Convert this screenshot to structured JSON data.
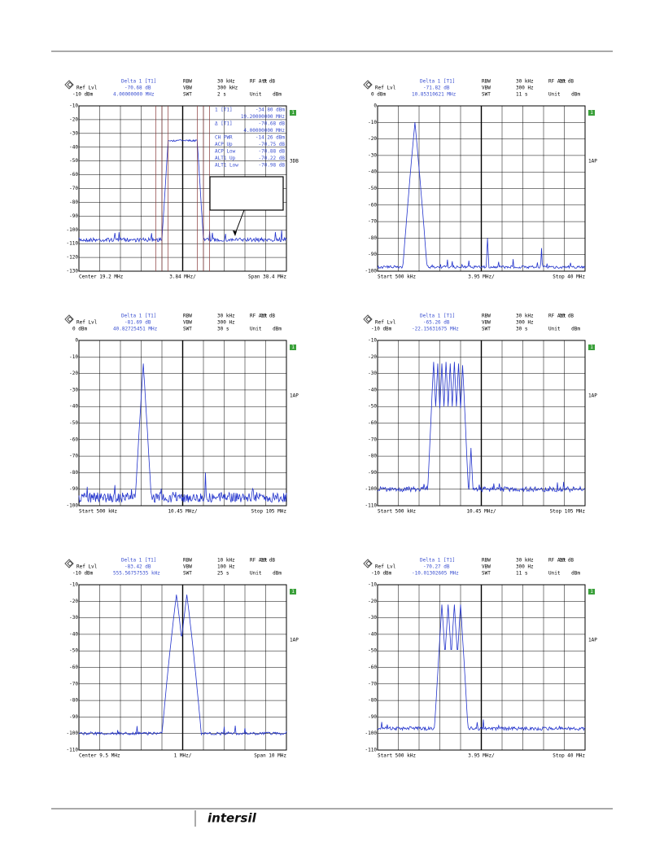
{
  "panels": [
    {
      "marker_title": "Delta 1 [T1]",
      "ref_label": "Ref Lvl",
      "marker_level": "-70.68 dB",
      "ref_level": "-10 dBm",
      "marker_freq": "4.00000000 MHz",
      "settings": [
        [
          "RBW",
          "30 kHz",
          "RF Att",
          "0 dB"
        ],
        [
          "VBW",
          "300 kHz"
        ],
        [
          "SWT",
          "2 s",
          "Unit",
          "dBm"
        ]
      ],
      "trace_label": "1",
      "side_label": "3DB",
      "yticks": [
        "-10",
        "-20",
        "-30",
        "-40",
        "-50",
        "-60",
        "-70",
        "-80",
        "-90",
        "-100",
        "-110",
        "-120",
        "-130"
      ],
      "footer": [
        "Center 19.2 MHz",
        "3.84 MHz/",
        "Span 38.4 MHz"
      ],
      "marker_table": [
        [
          "1 [T1]",
          "-34.80 dBm"
        ],
        [
          "19.20000000 MHz"
        ],
        [
          "Δ [T1]",
          "-70.68 dB"
        ],
        [
          "4.00000000 MHz"
        ],
        [
          "CH PWR",
          "-14.26 dBm"
        ],
        [
          "ACP Up",
          "-70.75 dB"
        ],
        [
          "ACP Low",
          "-70.88 dB"
        ],
        [
          "ALT1 Up",
          "-70.22 dB"
        ],
        [
          "ALT1 Low",
          "-70.98 dB"
        ]
      ]
    },
    {
      "marker_title": "Delta 1 [T1]",
      "ref_label": "Ref Lvl",
      "marker_level": "-71.82 dB",
      "ref_level": "0 dBm",
      "marker_freq": "10.85310621 MHz",
      "settings": [
        [
          "RBW",
          "30 kHz",
          "RF Att",
          "10 dB"
        ],
        [
          "VBW",
          "300 Hz"
        ],
        [
          "SWT",
          "11 s",
          "Unit",
          "dBm"
        ]
      ],
      "trace_label": "1",
      "side_label": "1AP",
      "yticks": [
        "0",
        "-10",
        "-20",
        "-30",
        "-40",
        "-50",
        "-60",
        "-70",
        "-80",
        "-90",
        "-100"
      ],
      "footer": [
        "Start 500 kHz",
        "3.95 MHz/",
        "Stop 40 MHz"
      ]
    },
    {
      "marker_title": "Delta 1 [T1]",
      "ref_label": "Ref Lvl",
      "marker_level": "-81.69 dB",
      "ref_level": "0 dBm",
      "marker_freq": "40.82725451 MHz",
      "settings": [
        [
          "RBW",
          "30 kHz",
          "RF Att",
          "10 dB"
        ],
        [
          "VBW",
          "300 Hz"
        ],
        [
          "SWT",
          "30 s",
          "Unit",
          "dBm"
        ]
      ],
      "trace_label": "1",
      "side_label": "1AP",
      "yticks": [
        "0",
        "-10",
        "-20",
        "-30",
        "-40",
        "-50",
        "-60",
        "-70",
        "-80",
        "-90",
        "-100"
      ],
      "footer": [
        "Start 500 kHz",
        "10.45 MHz/",
        "Stop 105 MHz"
      ]
    },
    {
      "marker_title": "Delta 1 [T1]",
      "ref_label": "Ref Lvl",
      "marker_level": "-65.26 dB",
      "ref_level": "-10 dBm",
      "marker_freq": "-22.15631675 MHz",
      "settings": [
        [
          "RBW",
          "30 kHz",
          "RF Att",
          "10 dB"
        ],
        [
          "VBW",
          "300 Hz"
        ],
        [
          "SWT",
          "30 s",
          "Unit",
          "dBm"
        ]
      ],
      "trace_label": "1",
      "side_label": "1AP",
      "yticks": [
        "-10",
        "-20",
        "-30",
        "-40",
        "-50",
        "-60",
        "-70",
        "-80",
        "-90",
        "-100",
        "-110"
      ],
      "footer": [
        "Start 500 kHz",
        "10.45 MHz/",
        "Stop 105 MHz"
      ]
    },
    {
      "marker_title": "Delta 1 [T1]",
      "ref_label": "Ref Lvl",
      "marker_level": "-83.42 dB",
      "ref_level": "-10 dBm",
      "marker_freq": "555.56757535 kHz",
      "settings": [
        [
          "RBW",
          "10 kHz",
          "RF Att",
          "10 dB"
        ],
        [
          "VBW",
          "100 Hz"
        ],
        [
          "SWT",
          "25 s",
          "Unit",
          "dBm"
        ]
      ],
      "trace_label": "1",
      "side_label": "1AP",
      "yticks": [
        "-10",
        "-20",
        "-30",
        "-40",
        "-50",
        "-60",
        "-70",
        "-80",
        "-90",
        "-100",
        "-110"
      ],
      "footer": [
        "Center 9.5 MHz",
        "1 MHz/",
        "Span 10 MHz"
      ]
    },
    {
      "marker_title": "Delta 1 [T1]",
      "ref_label": "Ref Lvl",
      "marker_level": "-70.27 dB",
      "ref_level": "-10 dBm",
      "marker_freq": "-10.01302605 MHz",
      "settings": [
        [
          "RBW",
          "30 kHz",
          "RF Att",
          "10 dB"
        ],
        [
          "VBW",
          "300 Hz"
        ],
        [
          "SWT",
          "11 s",
          "Unit",
          "dBm"
        ]
      ],
      "trace_label": "1",
      "side_label": "1AP",
      "yticks": [
        "-10",
        "-20",
        "-30",
        "-40",
        "-50",
        "-60",
        "-70",
        "-80",
        "-90",
        "-100",
        "-110"
      ],
      "footer": [
        "Start 500 kHz",
        "3.95 MHz/",
        "Stop 40 MHz"
      ]
    }
  ],
  "footer": {
    "logo": "intersil"
  }
}
